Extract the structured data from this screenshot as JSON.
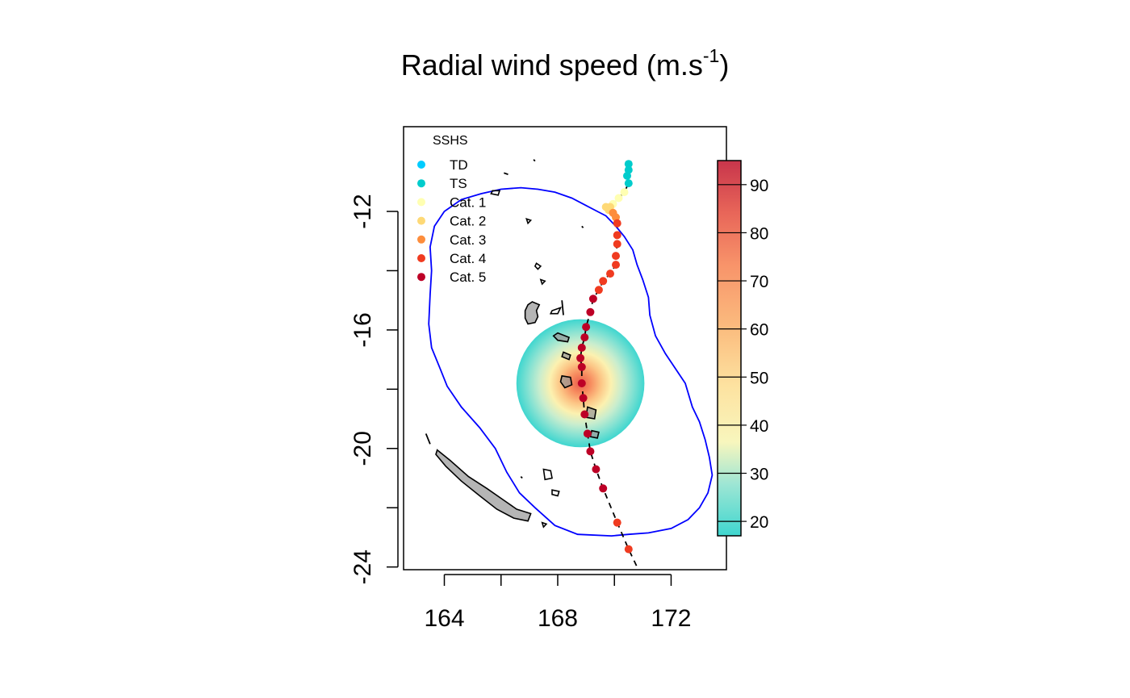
{
  "chart_data": {
    "type": "scatter",
    "title_main": "Radial wind speed (m.s",
    "title_sup": "-1",
    "title_close": ")",
    "xlim": [
      162.7,
      174.1
    ],
    "ylim": [
      -24,
      -10.5
    ],
    "x_ticks": [
      164,
      168,
      172
    ],
    "y_ticks": [
      -12,
      -16,
      -20,
      -24
    ],
    "x_minor_ticks": [
      166,
      170
    ],
    "y_minor_ticks": [
      -14,
      -18,
      -22
    ],
    "colorbar": {
      "min": 17,
      "max": 95,
      "ticks": [
        20,
        30,
        40,
        50,
        60,
        70,
        80,
        90
      ],
      "colors": [
        "#3fd6cf",
        "#cbeed0",
        "#fbf7b6",
        "#fcd08c",
        "#f99b63",
        "#e8594a",
        "#c33148"
      ]
    },
    "legend": {
      "title": "SSHS",
      "items": [
        {
          "label": "TD",
          "color": "#00ccff"
        },
        {
          "label": "TS",
          "color": "#00cccc"
        },
        {
          "label": "Cat. 1",
          "color": "#ffffb2"
        },
        {
          "label": "Cat. 2",
          "color": "#fed976"
        },
        {
          "label": "Cat. 3",
          "color": "#fd8d3c"
        },
        {
          "label": "Cat. 4",
          "color": "#f03b20"
        },
        {
          "label": "Cat. 5",
          "color": "#bd0026"
        }
      ]
    },
    "wind_field": {
      "center_lon": 168.8,
      "center_lat": -17.8,
      "radius_deg": 2.0,
      "max_speed": 80,
      "edge_speed": 18
    },
    "buffer_color": "#0000ff",
    "track": [
      {
        "lon": 170.5,
        "lat": -10.4,
        "cat": "TS"
      },
      {
        "lon": 170.5,
        "lat": -10.6,
        "cat": "TS"
      },
      {
        "lon": 170.45,
        "lat": -10.8,
        "cat": "TS"
      },
      {
        "lon": 170.5,
        "lat": -11.05,
        "cat": "TS"
      },
      {
        "lon": 170.35,
        "lat": -11.35,
        "cat": "Cat. 1"
      },
      {
        "lon": 170.15,
        "lat": -11.55,
        "cat": "Cat. 1"
      },
      {
        "lon": 169.95,
        "lat": -11.75,
        "cat": "Cat. 1"
      },
      {
        "lon": 169.85,
        "lat": -11.85,
        "cat": "Cat. 2"
      },
      {
        "lon": 169.7,
        "lat": -11.85,
        "cat": "Cat. 2"
      },
      {
        "lon": 169.8,
        "lat": -11.95,
        "cat": "Cat. 2"
      },
      {
        "lon": 169.95,
        "lat": -12.05,
        "cat": "Cat. 3"
      },
      {
        "lon": 170.05,
        "lat": -12.2,
        "cat": "Cat. 3"
      },
      {
        "lon": 170.1,
        "lat": -12.4,
        "cat": "Cat. 4"
      },
      {
        "lon": 170.1,
        "lat": -12.8,
        "cat": "Cat. 4"
      },
      {
        "lon": 170.1,
        "lat": -13.1,
        "cat": "Cat. 4"
      },
      {
        "lon": 170.05,
        "lat": -13.5,
        "cat": "Cat. 4"
      },
      {
        "lon": 170.05,
        "lat": -13.8,
        "cat": "Cat. 4"
      },
      {
        "lon": 169.85,
        "lat": -14.1,
        "cat": "Cat. 4"
      },
      {
        "lon": 169.6,
        "lat": -14.35,
        "cat": "Cat. 4"
      },
      {
        "lon": 169.45,
        "lat": -14.65,
        "cat": "Cat. 4"
      },
      {
        "lon": 169.25,
        "lat": -14.95,
        "cat": "Cat. 5"
      },
      {
        "lon": 169.15,
        "lat": -15.4,
        "cat": "Cat. 5"
      },
      {
        "lon": 169.0,
        "lat": -15.9,
        "cat": "Cat. 5"
      },
      {
        "lon": 168.95,
        "lat": -16.25,
        "cat": "Cat. 5"
      },
      {
        "lon": 168.85,
        "lat": -16.6,
        "cat": "Cat. 5"
      },
      {
        "lon": 168.8,
        "lat": -16.95,
        "cat": "Cat. 5"
      },
      {
        "lon": 168.85,
        "lat": -17.25,
        "cat": "Cat. 5"
      },
      {
        "lon": 168.85,
        "lat": -17.8,
        "cat": "Cat. 5"
      },
      {
        "lon": 168.9,
        "lat": -18.3,
        "cat": "Cat. 5"
      },
      {
        "lon": 168.95,
        "lat": -18.85,
        "cat": "Cat. 5"
      },
      {
        "lon": 169.05,
        "lat": -19.5,
        "cat": "Cat. 5"
      },
      {
        "lon": 169.15,
        "lat": -20.1,
        "cat": "Cat. 5"
      },
      {
        "lon": 169.35,
        "lat": -20.7,
        "cat": "Cat. 5"
      },
      {
        "lon": 169.6,
        "lat": -21.35,
        "cat": "Cat. 5"
      },
      {
        "lon": 170.1,
        "lat": -22.5,
        "cat": "Cat. 4"
      },
      {
        "lon": 170.5,
        "lat": -23.4,
        "cat": "Cat. 4"
      }
    ],
    "track_tail": [
      {
        "lon": 170.5,
        "lat": -23.4
      },
      {
        "lon": 170.8,
        "lat": -24.0
      }
    ],
    "buffer_outline": [
      [
        166.0,
        -11.25
      ],
      [
        166.7,
        -11.2
      ],
      [
        167.3,
        -11.25
      ],
      [
        167.9,
        -11.35
      ],
      [
        168.5,
        -11.55
      ],
      [
        169.0,
        -11.8
      ],
      [
        169.4,
        -12.0
      ],
      [
        169.7,
        -12.15
      ],
      [
        170.05,
        -12.5
      ],
      [
        170.35,
        -12.85
      ],
      [
        170.65,
        -13.3
      ],
      [
        170.8,
        -13.8
      ],
      [
        171.0,
        -14.3
      ],
      [
        171.2,
        -14.9
      ],
      [
        171.25,
        -15.5
      ],
      [
        171.45,
        -16.2
      ],
      [
        171.8,
        -16.8
      ],
      [
        172.15,
        -17.3
      ],
      [
        172.5,
        -17.8
      ],
      [
        172.75,
        -18.6
      ],
      [
        173.0,
        -19.1
      ],
      [
        173.2,
        -19.7
      ],
      [
        173.35,
        -20.3
      ],
      [
        173.45,
        -20.9
      ],
      [
        173.3,
        -21.5
      ],
      [
        173.0,
        -22.0
      ],
      [
        172.6,
        -22.4
      ],
      [
        172.0,
        -22.7
      ],
      [
        171.2,
        -22.85
      ],
      [
        170.5,
        -22.9
      ],
      [
        169.9,
        -22.95
      ],
      [
        168.7,
        -22.9
      ],
      [
        167.9,
        -22.6
      ],
      [
        167.2,
        -22.0
      ],
      [
        166.65,
        -21.5
      ],
      [
        166.2,
        -20.8
      ],
      [
        165.8,
        -20.0
      ],
      [
        165.25,
        -19.3
      ],
      [
        164.6,
        -18.6
      ],
      [
        164.1,
        -17.9
      ],
      [
        163.85,
        -17.3
      ],
      [
        163.55,
        -16.6
      ],
      [
        163.45,
        -15.8
      ],
      [
        163.5,
        -14.8
      ],
      [
        163.55,
        -14.0
      ],
      [
        163.5,
        -13.2
      ],
      [
        163.65,
        -12.5
      ],
      [
        164.0,
        -12.0
      ],
      [
        164.6,
        -11.6
      ],
      [
        165.3,
        -11.4
      ],
      [
        166.0,
        -11.25
      ]
    ],
    "islands_filled": [
      [
        [
          163.75,
          -20.05
        ],
        [
          164.2,
          -20.4
        ],
        [
          164.85,
          -20.95
        ],
        [
          165.5,
          -21.35
        ],
        [
          166.1,
          -21.75
        ],
        [
          166.55,
          -22.05
        ],
        [
          167.05,
          -22.2
        ],
        [
          166.95,
          -22.45
        ],
        [
          166.45,
          -22.35
        ],
        [
          165.85,
          -22.05
        ],
        [
          165.25,
          -21.6
        ],
        [
          164.6,
          -21.1
        ],
        [
          164.05,
          -20.6
        ],
        [
          163.7,
          -20.2
        ]
      ],
      [
        [
          167.1,
          -15.05
        ],
        [
          167.35,
          -15.15
        ],
        [
          167.25,
          -15.35
        ],
        [
          167.3,
          -15.55
        ],
        [
          167.2,
          -15.75
        ],
        [
          166.95,
          -15.8
        ],
        [
          166.85,
          -15.6
        ],
        [
          166.85,
          -15.35
        ],
        [
          166.95,
          -15.15
        ]
      ],
      [
        [
          168.0,
          -16.1
        ],
        [
          168.4,
          -16.25
        ],
        [
          168.35,
          -16.4
        ],
        [
          168.0,
          -16.35
        ],
        [
          167.85,
          -16.2
        ]
      ],
      [
        [
          168.2,
          -16.75
        ],
        [
          168.45,
          -16.85
        ],
        [
          168.4,
          -17.0
        ],
        [
          168.15,
          -16.9
        ]
      ],
      [
        [
          168.15,
          -17.55
        ],
        [
          168.45,
          -17.6
        ],
        [
          168.5,
          -17.85
        ],
        [
          168.25,
          -17.95
        ],
        [
          168.1,
          -17.75
        ]
      ],
      [
        [
          169.05,
          -18.6
        ],
        [
          169.35,
          -18.7
        ],
        [
          169.3,
          -19.0
        ],
        [
          169.0,
          -18.95
        ]
      ],
      [
        [
          169.2,
          -19.4
        ],
        [
          169.45,
          -19.45
        ],
        [
          169.4,
          -19.65
        ],
        [
          169.15,
          -19.6
        ]
      ]
    ],
    "islands_outline": [
      [
        [
          165.7,
          -11.3
        ],
        [
          165.95,
          -11.3
        ],
        [
          165.9,
          -11.45
        ],
        [
          165.65,
          -11.4
        ]
      ],
      [
        [
          166.9,
          -12.25
        ],
        [
          167.05,
          -12.3
        ],
        [
          166.95,
          -12.4
        ]
      ],
      [
        [
          167.25,
          -13.75
        ],
        [
          167.4,
          -13.85
        ],
        [
          167.3,
          -13.95
        ],
        [
          167.2,
          -13.85
        ]
      ],
      [
        [
          167.4,
          -14.3
        ],
        [
          167.55,
          -14.35
        ],
        [
          167.45,
          -14.45
        ]
      ],
      [
        [
          167.8,
          -15.35
        ],
        [
          168.1,
          -15.25
        ],
        [
          168.0,
          -15.45
        ],
        [
          167.75,
          -15.45
        ]
      ],
      [
        [
          168.15,
          -15.0
        ],
        [
          168.2,
          -15.5
        ]
      ],
      [
        [
          167.5,
          -20.7
        ],
        [
          167.75,
          -20.75
        ],
        [
          167.8,
          -21.0
        ],
        [
          167.55,
          -21.05
        ]
      ],
      [
        [
          167.8,
          -21.4
        ],
        [
          168.05,
          -21.45
        ],
        [
          168.0,
          -21.6
        ],
        [
          167.8,
          -21.55
        ]
      ],
      [
        [
          167.45,
          -22.5
        ],
        [
          167.6,
          -22.55
        ],
        [
          167.5,
          -22.65
        ]
      ],
      [
        [
          166.7,
          -20.95
        ],
        [
          166.75,
          -21.0
        ]
      ],
      [
        [
          163.35,
          -19.5
        ],
        [
          163.5,
          -19.85
        ]
      ],
      [
        [
          166.1,
          -10.7
        ],
        [
          166.25,
          -10.75
        ]
      ],
      [
        [
          167.15,
          -10.25
        ],
        [
          167.2,
          -10.3
        ]
      ],
      [
        [
          168.85,
          -12.5
        ],
        [
          168.9,
          -12.55
        ]
      ]
    ]
  }
}
